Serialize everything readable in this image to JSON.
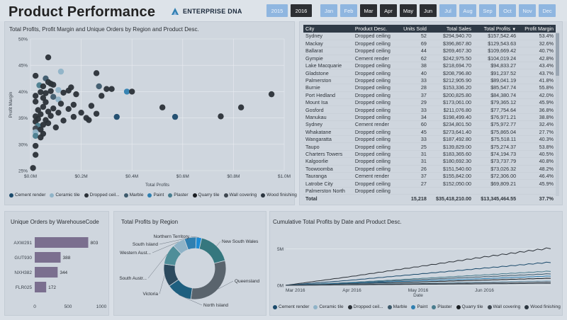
{
  "header": {
    "title": "Product Performance",
    "logo_text": "ENTERPRISE DNA",
    "years": [
      {
        "label": "2015",
        "selected": false
      },
      {
        "label": "2016",
        "selected": true
      }
    ],
    "months": [
      {
        "label": "Jan",
        "selected": false
      },
      {
        "label": "Feb",
        "selected": false
      },
      {
        "label": "Mar",
        "selected": true
      },
      {
        "label": "Apr",
        "selected": true
      },
      {
        "label": "May",
        "selected": true
      },
      {
        "label": "Jun",
        "selected": true
      },
      {
        "label": "Jul",
        "selected": false
      },
      {
        "label": "Aug",
        "selected": false
      },
      {
        "label": "Sep",
        "selected": false
      },
      {
        "label": "Oct",
        "selected": false
      },
      {
        "label": "Nov",
        "selected": false
      },
      {
        "label": "Dec",
        "selected": false
      }
    ]
  },
  "colors": {
    "selected_btn": "#2d2f33",
    "unselected_btn": "#8fb6e0",
    "table_header": "#2f3a46"
  },
  "legend": [
    {
      "name": "Cement render",
      "color": "#1b4a6b"
    },
    {
      "name": "Ceramic tile",
      "color": "#8fb3c7"
    },
    {
      "name": "Dropped ceil...",
      "color": "#2b3138"
    },
    {
      "name": "Marble",
      "color": "#3d5a6c"
    },
    {
      "name": "Paint",
      "color": "#2f7fb0"
    },
    {
      "name": "Plaster",
      "color": "#4a7d8e"
    },
    {
      "name": "Quarry tile",
      "color": "#1a1e22"
    },
    {
      "name": "Wall covering",
      "color": "#3e4750"
    },
    {
      "name": "Wood finishing",
      "color": "#2c3640"
    }
  ],
  "legend_line": [
    {
      "name": "Cement render",
      "color": "#1b4a6b"
    },
    {
      "name": "Ceramic tile",
      "color": "#8fb3c7"
    },
    {
      "name": "Dropped ceil...",
      "color": "#2b3138"
    },
    {
      "name": "Marble",
      "color": "#3d5a6c"
    },
    {
      "name": "Paint",
      "color": "#2f7fb0"
    },
    {
      "name": "Plaster",
      "color": "#4a7d8e"
    },
    {
      "name": "Quarry tile",
      "color": "#1a1e22"
    },
    {
      "name": "Wall covering",
      "color": "#3e4750"
    },
    {
      "name": "Wood finishing",
      "color": "#2c3640"
    }
  ],
  "table": {
    "columns": [
      "City",
      "Product Desc.",
      "Units Sold",
      "Total Sales",
      "Total Profits",
      "Profit Margin"
    ],
    "rows": [
      [
        "Sydney",
        "Dropped ceiling",
        "52",
        "$294,940.70",
        "$157,542.46",
        "53.4%"
      ],
      [
        "Mackay",
        "Dropped ceiling",
        "69",
        "$396,867.80",
        "$129,543.63",
        "32.6%"
      ],
      [
        "Ballarat",
        "Dropped ceiling",
        "44",
        "$269,467.30",
        "$109,669.42",
        "40.7%"
      ],
      [
        "Gympie",
        "Cement render",
        "62",
        "$242,975.50",
        "$104,019.24",
        "42.8%"
      ],
      [
        "Lake Macquarie",
        "Dropped ceiling",
        "38",
        "$218,694.70",
        "$94,833.27",
        "43.4%"
      ],
      [
        "Gladstone",
        "Dropped ceiling",
        "40",
        "$208,796.80",
        "$91,237.52",
        "43.7%"
      ],
      [
        "Palmerston",
        "Dropped ceiling",
        "33",
        "$212,905.90",
        "$89,041.19",
        "41.8%"
      ],
      [
        "Burnie",
        "Dropped ceiling",
        "28",
        "$153,336.20",
        "$85,547.74",
        "55.8%"
      ],
      [
        "Port Hedland",
        "Dropped ceiling",
        "37",
        "$200,825.80",
        "$84,380.74",
        "42.0%"
      ],
      [
        "Mount Isa",
        "Dropped ceiling",
        "29",
        "$173,061.00",
        "$79,365.12",
        "45.9%"
      ],
      [
        "Gosford",
        "Dropped ceiling",
        "33",
        "$211,076.80",
        "$77,754.64",
        "36.8%"
      ],
      [
        "Manukau",
        "Dropped ceiling",
        "34",
        "$198,499.40",
        "$76,971.21",
        "38.8%"
      ],
      [
        "Sydney",
        "Cement render",
        "60",
        "$234,801.50",
        "$75,972.77",
        "32.4%"
      ],
      [
        "Whakatane",
        "Dropped ceiling",
        "45",
        "$273,641.40",
        "$75,865.04",
        "27.7%"
      ],
      [
        "Wangaratta",
        "Dropped ceiling",
        "33",
        "$187,492.80",
        "$75,518.11",
        "40.3%"
      ],
      [
        "Taupo",
        "Dropped ceiling",
        "25",
        "$139,829.00",
        "$75,274.37",
        "53.8%"
      ],
      [
        "Charters Towers",
        "Dropped ceiling",
        "31",
        "$183,365.60",
        "$74,194.73",
        "40.5%"
      ],
      [
        "Kalgoorlie",
        "Dropped ceiling",
        "31",
        "$180,692.30",
        "$73,737.79",
        "40.8%"
      ],
      [
        "Toowoomba",
        "Dropped ceiling",
        "26",
        "$151,540.60",
        "$73,026.32",
        "48.2%"
      ],
      [
        "Tauranga",
        "Cement render",
        "37",
        "$155,842.00",
        "$72,306.00",
        "46.4%"
      ],
      [
        "Latrobe City",
        "Dropped ceiling",
        "27",
        "$152,050.00",
        "$69,809.21",
        "45.9%"
      ],
      [
        "Palmerston North",
        "Dropped ceiling",
        "",
        "",
        "",
        ""
      ]
    ],
    "total": [
      "Total",
      "",
      "15,218",
      "$35,418,210.00",
      "$13,345,464.55",
      "37.7%"
    ]
  },
  "scatter": {
    "title": "Total Profits, Profit Margin and Unique Orders by Region and Product Desc.",
    "x_label": "Total Profits",
    "y_label": "Profit Margin",
    "x_ticks": [
      "$0.0M",
      "$0.2M",
      "$0.4M",
      "$0.6M",
      "$0.8M",
      "$1.0M"
    ],
    "y_ticks": [
      "50%",
      "45%",
      "40%",
      "35%",
      "30%",
      "25%"
    ]
  },
  "bars": {
    "title": "Unique Orders by WarehouseCode",
    "x_ticks": [
      "0",
      "500",
      "1000"
    ]
  },
  "donut": {
    "title": "Total Profits by Region"
  },
  "line": {
    "title": "Cumulative Total Profits by Date and Product Desc.",
    "x_label": "Date",
    "x_ticks": [
      "Mar 2016",
      "Apr 2016",
      "May 2016",
      "Jun 2016"
    ],
    "y_ticks": [
      "5M",
      "0M"
    ]
  },
  "chart_data": [
    {
      "type": "scatter",
      "title": "Total Profits, Profit Margin and Unique Orders by Region and Product Desc.",
      "xlabel": "Total Profits",
      "ylabel": "Profit Margin",
      "xlim": [
        0,
        1.0
      ],
      "ylim": [
        25,
        50
      ],
      "points": [
        [
          0.07,
          46.5,
          "#2b3138"
        ],
        [
          0.12,
          43.8,
          "#8fb3c7"
        ],
        [
          0.26,
          43.5,
          "#2b3138"
        ],
        [
          0.02,
          43.0,
          "#2b3138"
        ],
        [
          0.06,
          42.5,
          "#3d5a6c"
        ],
        [
          0.07,
          41.8,
          "#2b3138"
        ],
        [
          0.08,
          41.5,
          "#2b3138"
        ],
        [
          0.035,
          41.2,
          "#4a7d8e"
        ],
        [
          0.05,
          41.0,
          "#2b3138"
        ],
        [
          0.09,
          41.3,
          "#2b3138"
        ],
        [
          0.16,
          40.8,
          "#2b3138"
        ],
        [
          0.27,
          41.0,
          "#3d5a6c"
        ],
        [
          0.3,
          40.5,
          "#2b3138"
        ],
        [
          0.32,
          40.5,
          "#2b3138"
        ],
        [
          0.38,
          40.0,
          "#2f7fb0"
        ],
        [
          0.4,
          40.0,
          "#2b3138"
        ],
        [
          0.11,
          40.3,
          "#8fb3c7"
        ],
        [
          0.15,
          40.2,
          "#2b3138"
        ],
        [
          0.08,
          40.1,
          "#2b3138"
        ],
        [
          0.13,
          39.8,
          "#2b3138"
        ],
        [
          0.04,
          39.9,
          "#2b3138"
        ],
        [
          0.06,
          39.7,
          "#2b3138"
        ],
        [
          0.18,
          39.5,
          "#2b3138"
        ],
        [
          0.02,
          39.2,
          "#2b3138"
        ],
        [
          0.09,
          39.0,
          "#3d5a6c"
        ],
        [
          0.28,
          39.2,
          "#2b3138"
        ],
        [
          0.05,
          38.8,
          "#2b3138"
        ],
        [
          0.11,
          38.5,
          "#8fb3c7"
        ],
        [
          0.02,
          38.1,
          "#2b3138"
        ],
        [
          0.06,
          38.0,
          "#2b3138"
        ],
        [
          0.12,
          37.7,
          "#2b3138"
        ],
        [
          0.17,
          37.5,
          "#2b3138"
        ],
        [
          0.24,
          37.3,
          "#2b3138"
        ],
        [
          0.05,
          37.1,
          "#2b3138"
        ],
        [
          0.09,
          36.8,
          "#2b3138"
        ],
        [
          0.03,
          36.5,
          "#2b3138"
        ],
        [
          0.15,
          36.7,
          "#2b3138"
        ],
        [
          0.52,
          37.0,
          "#2b3138"
        ],
        [
          0.83,
          37.0,
          "#2b3138"
        ],
        [
          0.95,
          39.5,
          "#2b3138"
        ],
        [
          0.07,
          36.2,
          "#2b3138"
        ],
        [
          0.11,
          36.0,
          "#2b3138"
        ],
        [
          0.2,
          36.0,
          "#2b3138"
        ],
        [
          0.26,
          35.8,
          "#2b3138"
        ],
        [
          0.04,
          35.7,
          "#2b3138"
        ],
        [
          0.02,
          35.3,
          "#2b3138"
        ],
        [
          0.08,
          35.4,
          "#2b3138"
        ],
        [
          0.17,
          35.2,
          "#2b3138"
        ],
        [
          0.22,
          35.0,
          "#2b3138"
        ],
        [
          0.34,
          35.2,
          "#1b4a6b"
        ],
        [
          0.57,
          35.2,
          "#1b4a6b"
        ],
        [
          0.75,
          35.3,
          "#2b3138"
        ],
        [
          0.03,
          34.8,
          "#2b3138"
        ],
        [
          0.06,
          34.6,
          "#2b3138"
        ],
        [
          0.23,
          34.6,
          "#2b3138"
        ],
        [
          0.13,
          34.5,
          "#2b3138"
        ],
        [
          0.02,
          34.3,
          "#2b3138"
        ],
        [
          0.07,
          34.0,
          "#2b3138"
        ],
        [
          0.03,
          33.5,
          "#4a7d8e"
        ],
        [
          0.05,
          33.7,
          "#2b3138"
        ],
        [
          0.1,
          33.2,
          "#2b3138"
        ],
        [
          0.02,
          33.0,
          "#3e4750"
        ],
        [
          0.04,
          32.8,
          "#2b3138"
        ],
        [
          0.02,
          32.3,
          "#8fb3c7"
        ],
        [
          0.05,
          32.0,
          "#2b3138"
        ],
        [
          0.02,
          31.6,
          "#4a7d8e"
        ],
        [
          0.04,
          31.3,
          "#2b3138"
        ],
        [
          0.02,
          29.7,
          "#2b3138"
        ],
        [
          0.02,
          28.0,
          "#2b3138"
        ],
        [
          0.01,
          25.5,
          "#2b3138"
        ]
      ]
    },
    {
      "type": "bar",
      "title": "Unique Orders by WarehouseCode",
      "categories": [
        "AXW291",
        "GUT930",
        "NXH382",
        "FLR025"
      ],
      "values": [
        803,
        388,
        344,
        172
      ],
      "xlim": [
        0,
        1000
      ]
    },
    {
      "type": "pie",
      "title": "Total Profits by Region",
      "labels": [
        "New South Wales",
        "Queensland",
        "North Island",
        "Victoria",
        "South Austr...",
        "Western Aust...",
        "South Island",
        "Northern Territory"
      ],
      "values": [
        17.5,
        31.1,
        13.3,
        11.8,
        10.7,
        6.6,
        6.2,
        2.8
      ],
      "colors": [
        "#35777e",
        "#5a646d",
        "#1e5f7f",
        "#2c4a5e",
        "#4f8e99",
        "#8fb3c7",
        "#2f7fb0",
        "#1c8bd4"
      ]
    },
    {
      "type": "line",
      "title": "Cumulative Total Profits by Date and Product Desc.",
      "xlabel": "Date",
      "x": [
        "Mar 2016",
        "Apr 2016",
        "May 2016",
        "Jun 2016",
        "Jun 30 2016"
      ],
      "ylim": [
        0,
        6
      ],
      "series": [
        {
          "name": "Dropped ceil...",
          "color": "#2b3138",
          "values": [
            0,
            1.2,
            2.5,
            3.8,
            5.0
          ]
        },
        {
          "name": "Cement render",
          "color": "#1b4a6b",
          "values": [
            0,
            0.7,
            1.5,
            2.3,
            3.1
          ]
        },
        {
          "name": "Plaster",
          "color": "#4a7d8e",
          "values": [
            0,
            0.4,
            0.9,
            1.4,
            1.9
          ]
        },
        {
          "name": "Marble",
          "color": "#3d5a6c",
          "values": [
            0,
            0.35,
            0.75,
            1.15,
            1.55
          ]
        },
        {
          "name": "Paint",
          "color": "#2f7fb0",
          "values": [
            0,
            0.3,
            0.6,
            0.9,
            1.25
          ]
        },
        {
          "name": "Quarry tile",
          "color": "#1a1e22",
          "values": [
            0,
            0.22,
            0.45,
            0.7,
            0.95
          ]
        },
        {
          "name": "Ceramic tile",
          "color": "#8fb3c7",
          "values": [
            0,
            0.15,
            0.3,
            0.45,
            0.6
          ]
        },
        {
          "name": "Wall covering",
          "color": "#3e4750",
          "values": [
            0,
            0.1,
            0.22,
            0.33,
            0.45
          ]
        },
        {
          "name": "Wood finishing",
          "color": "#2c3640",
          "values": [
            0,
            0.06,
            0.13,
            0.2,
            0.27
          ]
        }
      ]
    }
  ]
}
